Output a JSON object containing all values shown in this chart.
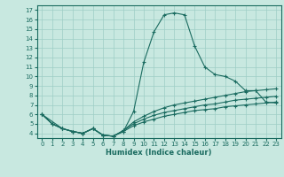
{
  "xlabel": "Humidex (Indice chaleur)",
  "bg_color": "#c8e8e0",
  "grid_color": "#9ecec5",
  "line_color": "#1a6b60",
  "xlim": [
    -0.5,
    23.5
  ],
  "ylim": [
    3.5,
    17.5
  ],
  "xticks": [
    0,
    1,
    2,
    3,
    4,
    5,
    6,
    7,
    8,
    9,
    10,
    11,
    12,
    13,
    14,
    15,
    16,
    17,
    18,
    19,
    20,
    21,
    22,
    23
  ],
  "yticks": [
    4,
    5,
    6,
    7,
    8,
    9,
    10,
    11,
    12,
    13,
    14,
    15,
    16,
    17
  ],
  "line1_x": [
    0,
    1,
    2,
    3,
    4,
    5,
    6,
    7,
    8,
    9,
    10,
    11,
    12,
    13,
    14,
    15,
    16,
    17,
    18,
    19,
    20,
    21,
    22,
    23
  ],
  "line1_y": [
    6.0,
    5.0,
    4.5,
    4.2,
    4.0,
    4.5,
    3.8,
    3.7,
    4.2,
    6.3,
    11.5,
    14.7,
    16.5,
    16.7,
    16.5,
    13.2,
    11.0,
    10.2,
    10.0,
    9.5,
    8.5,
    8.5,
    7.3,
    7.2
  ],
  "line2_x": [
    0,
    1,
    2,
    3,
    4,
    5,
    6,
    7,
    8,
    9,
    10,
    11,
    12,
    13,
    14,
    15,
    16,
    17,
    18,
    19,
    20,
    21,
    22,
    23
  ],
  "line2_y": [
    6.0,
    5.0,
    4.5,
    4.2,
    4.0,
    4.5,
    3.8,
    3.7,
    4.2,
    4.8,
    5.2,
    5.5,
    5.8,
    6.0,
    6.2,
    6.4,
    6.5,
    6.6,
    6.8,
    6.9,
    7.0,
    7.1,
    7.2,
    7.3
  ],
  "line3_x": [
    0,
    1,
    2,
    3,
    4,
    5,
    6,
    7,
    8,
    9,
    10,
    11,
    12,
    13,
    14,
    15,
    16,
    17,
    18,
    19,
    20,
    21,
    22,
    23
  ],
  "line3_y": [
    6.0,
    5.0,
    4.5,
    4.2,
    4.0,
    4.5,
    3.8,
    3.7,
    4.3,
    5.0,
    5.5,
    5.9,
    6.2,
    6.4,
    6.6,
    6.8,
    7.0,
    7.1,
    7.3,
    7.5,
    7.6,
    7.7,
    7.8,
    7.9
  ],
  "line4_x": [
    0,
    2,
    3,
    4,
    5,
    6,
    7,
    8,
    9,
    10,
    11,
    12,
    13,
    14,
    15,
    16,
    17,
    18,
    19,
    20,
    21,
    22,
    23
  ],
  "line4_y": [
    6.0,
    4.5,
    4.2,
    4.0,
    4.5,
    3.8,
    3.7,
    4.3,
    5.2,
    5.8,
    6.3,
    6.7,
    7.0,
    7.2,
    7.4,
    7.6,
    7.8,
    8.0,
    8.2,
    8.4,
    8.5,
    8.6,
    8.7
  ]
}
